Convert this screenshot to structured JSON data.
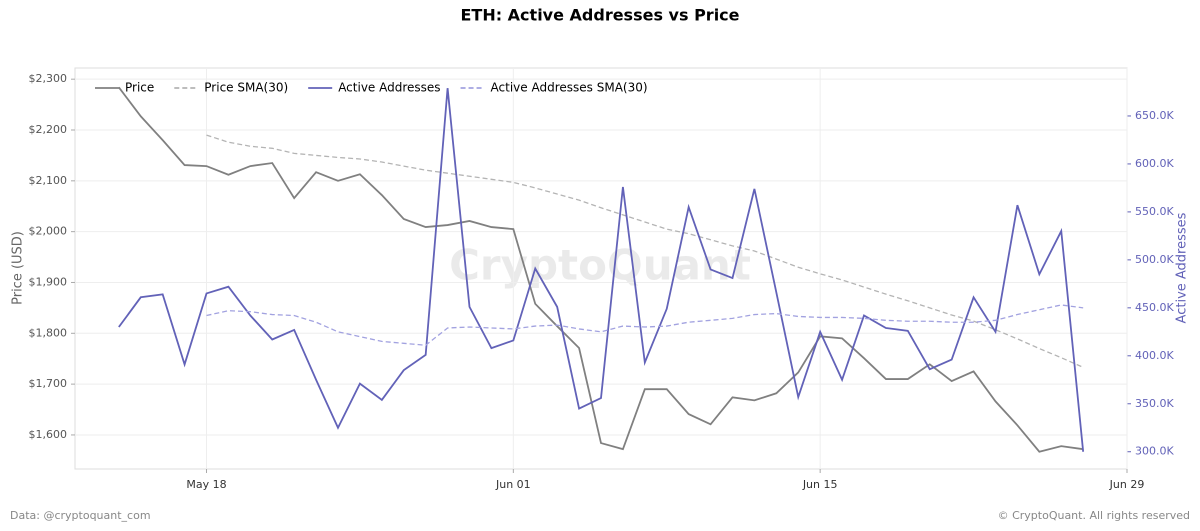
{
  "chart_data": {
    "type": "line",
    "title": "ETH: Active Addresses vs Price",
    "ylabel": "Price (USD)",
    "y2label": "Active Addresses",
    "watermark": "CryptoQuant",
    "source": "Data: @cryptoquant_com",
    "copyright": "© CryptoQuant. All rights reserved",
    "legend": "upper left",
    "grid": true,
    "x": [
      "May 14",
      "May 15",
      "May 16",
      "May 17",
      "May 18",
      "May 19",
      "May 20",
      "May 21",
      "May 22",
      "May 23",
      "May 24",
      "May 25",
      "May 26",
      "May 27",
      "May 28",
      "May 29",
      "May 30",
      "May 31",
      "Jun 01",
      "Jun 02",
      "Jun 03",
      "Jun 04",
      "Jun 05",
      "Jun 06",
      "Jun 07",
      "Jun 08",
      "Jun 09",
      "Jun 10",
      "Jun 11",
      "Jun 12",
      "Jun 13",
      "Jun 14",
      "Jun 15",
      "Jun 16",
      "Jun 17",
      "Jun 18",
      "Jun 19",
      "Jun 20",
      "Jun 21",
      "Jun 22",
      "Jun 23",
      "Jun 24",
      "Jun 25",
      "Jun 26",
      "Jun 27"
    ],
    "xlim": [
      "May 12",
      "Jun 29"
    ],
    "xticks": [
      "May 18",
      "Jun 01",
      "Jun 15",
      "Jun 29"
    ],
    "ylim": [
      1533,
      2322
    ],
    "yticks": [
      {
        "value": 1600,
        "label": "$1,600"
      },
      {
        "value": 1700,
        "label": "$1,700"
      },
      {
        "value": 1800,
        "label": "$1,800"
      },
      {
        "value": 1900,
        "label": "$1,900"
      },
      {
        "value": 2000,
        "label": "$2,000"
      },
      {
        "value": 2100,
        "label": "$2,100"
      },
      {
        "value": 2200,
        "label": "$2,200"
      },
      {
        "value": 2300,
        "label": "$2,300"
      }
    ],
    "y2lim": [
      282000,
      700000
    ],
    "y2ticks": [
      {
        "value": 300000,
        "label": "300.0K"
      },
      {
        "value": 350000,
        "label": "350.0K"
      },
      {
        "value": 400000,
        "label": "400.0K"
      },
      {
        "value": 450000,
        "label": "450.0K"
      },
      {
        "value": 500000,
        "label": "500.0K"
      },
      {
        "value": 550000,
        "label": "550.0K"
      },
      {
        "value": 600000,
        "label": "600.0K"
      },
      {
        "value": 650000,
        "label": "650.0K"
      }
    ],
    "series": [
      {
        "name": "Price",
        "color": "#808080",
        "linestyle": "solid",
        "axis": "y",
        "values": [
          2284,
          2227,
          2180,
          2131,
          2129,
          2112,
          2129,
          2135,
          2066,
          2117,
          2100,
          2113,
          2072,
          2025,
          2009,
          2013,
          2021,
          2009,
          2005,
          1858,
          1814,
          1771,
          1584,
          1572,
          1690,
          1690,
          1641,
          1621,
          1674,
          1668,
          1682,
          1723,
          1794,
          1790,
          1751,
          1710,
          1710,
          1739,
          1706,
          1725,
          1666,
          1619,
          1567,
          1578,
          1572
        ]
      },
      {
        "name": "Price SMA(30)",
        "color": "#b4b4b4",
        "linestyle": "dashed",
        "axis": "y",
        "values": [
          null,
          null,
          null,
          null,
          2190,
          2176,
          2168,
          2164,
          2154,
          2150,
          2146,
          2143,
          2137,
          2129,
          2121,
          2115,
          2109,
          2103,
          2097,
          2086,
          2074,
          2062,
          2047,
          2033,
          2019,
          2005,
          1996,
          1984,
          1972,
          1962,
          1946,
          1930,
          1917,
          1905,
          1891,
          1877,
          1864,
          1850,
          1836,
          1824,
          1807,
          1789,
          1770,
          1752,
          1733
        ]
      },
      {
        "name": "Active Addresses",
        "color": "#6262b8",
        "linestyle": "solid",
        "axis": "y2",
        "values": [
          430000,
          461000,
          464000,
          391000,
          465000,
          472000,
          442000,
          417000,
          427000,
          375000,
          325000,
          371000,
          354000,
          385000,
          401000,
          679000,
          451000,
          408000,
          416000,
          491000,
          451000,
          345000,
          356000,
          576000,
          393000,
          449000,
          555000,
          490000,
          481000,
          574000,
          466000,
          357000,
          425000,
          375000,
          442000,
          429000,
          426000,
          386000,
          396000,
          461000,
          425000,
          557000,
          485000,
          530000,
          300000
        ]
      },
      {
        "name": "Active Addresses SMA(30)",
        "color": "#a2a2e0",
        "linestyle": "dashed",
        "axis": "y2",
        "values": [
          null,
          null,
          null,
          null,
          442000,
          447000,
          446000,
          443000,
          442000,
          435000,
          425000,
          420000,
          415000,
          413000,
          411000,
          429000,
          430000,
          429000,
          428000,
          431000,
          432000,
          428000,
          425000,
          431000,
          430000,
          431000,
          435000,
          437000,
          439000,
          443000,
          444000,
          441000,
          440000,
          440000,
          439000,
          437000,
          436000,
          436000,
          435000,
          435000,
          437000,
          443000,
          448000,
          453000,
          450000
        ]
      }
    ]
  }
}
